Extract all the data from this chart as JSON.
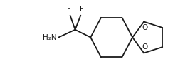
{
  "bg_color": "#ffffff",
  "line_color": "#1a1a1a",
  "line_width": 1.3,
  "font_size_atom": 7.5,
  "figsize": [
    2.74,
    1.04
  ],
  "dpi": 100,
  "O1_label": "O",
  "O2_label": "O",
  "F1_label": "F",
  "F2_label": "F",
  "NH2_label": "H₂N",
  "xlim": [
    0,
    274
  ],
  "ylim": [
    0,
    104
  ]
}
